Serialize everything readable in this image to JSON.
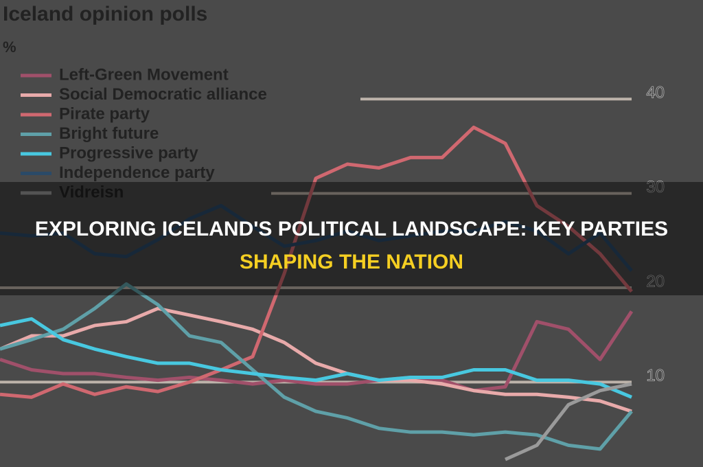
{
  "headline": [
    "EXPLORING ICELAND'S POLITICAL LANDSCAPE: KEY PARTIES",
    "SHAPING THE NATION"
  ],
  "chart_data": {
    "type": "line",
    "title": "Iceland opinion polls",
    "subtitle": "%",
    "x": [
      0,
      1,
      2,
      3,
      4,
      5,
      6,
      7,
      8,
      9,
      10,
      11,
      12,
      13,
      14,
      15,
      16,
      17,
      18,
      19,
      20
    ],
    "xlim": [
      0,
      22.26
    ],
    "ylim": [
      1,
      50.5
    ],
    "yticks": [
      10,
      20,
      30,
      40
    ],
    "grid": true,
    "series": [
      {
        "name": "Left-Green Movement",
        "color": "#a0506a",
        "values": [
          12.4,
          11.3,
          10.9,
          10.9,
          10.5,
          10.2,
          10.5,
          10.2,
          9.8,
          10.2,
          9.8,
          9.8,
          10.2,
          10.5,
          10.2,
          9.1,
          9.5,
          16.4,
          15.6,
          12.4,
          17.5
        ]
      },
      {
        "name": "Social Democratic alliance",
        "color": "#e8aaaa",
        "values": [
          13.5,
          14.9,
          14.9,
          16,
          16.4,
          17.8,
          17.1,
          16.4,
          15.6,
          14.2,
          12,
          10.9,
          10.2,
          10.2,
          9.8,
          9.1,
          8.7,
          8.7,
          8.4,
          8,
          6.9
        ]
      },
      {
        "name": "Pirate party",
        "color": "#d06870",
        "values": [
          8.7,
          8.4,
          9.8,
          8.7,
          9.5,
          9,
          10,
          11.3,
          12.7,
          21.5,
          31.6,
          33.1,
          32.7,
          33.8,
          33.8,
          37,
          35.3,
          28.7,
          26.5,
          23.6,
          19.6
        ]
      },
      {
        "name": "Bright future",
        "color": "#5fa0a8",
        "values": [
          13.5,
          14.5,
          15.6,
          17.8,
          20.4,
          18.2,
          14.9,
          14.2,
          11.3,
          8.4,
          6.9,
          6.2,
          5.1,
          4.7,
          4.7,
          4.4,
          4.7,
          4.4,
          3.3,
          2.9,
          6.9
        ]
      },
      {
        "name": "Progressive party",
        "color": "#48c8e0",
        "values": [
          16,
          16.7,
          14.5,
          13.5,
          12.7,
          12,
          12,
          11.3,
          10.9,
          10.5,
          10.2,
          10.9,
          10.2,
          10.5,
          10.5,
          11.3,
          11.3,
          10.2,
          10.2,
          9.8,
          8.4
        ]
      },
      {
        "name": "Independence party",
        "color": "#2a4a68",
        "values": [
          25.8,
          25.5,
          25.8,
          23.6,
          23.3,
          25.1,
          27.3,
          28.7,
          26.5,
          24.4,
          25,
          26,
          25,
          25.5,
          26,
          26,
          27,
          26,
          23.6,
          25.8,
          21.8
        ]
      },
      {
        "name": "Vidreisn",
        "color": "#9a9a9a",
        "values": [
          null,
          null,
          null,
          null,
          null,
          null,
          null,
          null,
          null,
          null,
          null,
          null,
          null,
          null,
          null,
          null,
          1.8,
          3.3,
          7.6,
          9.1,
          9.8
        ]
      }
    ]
  }
}
